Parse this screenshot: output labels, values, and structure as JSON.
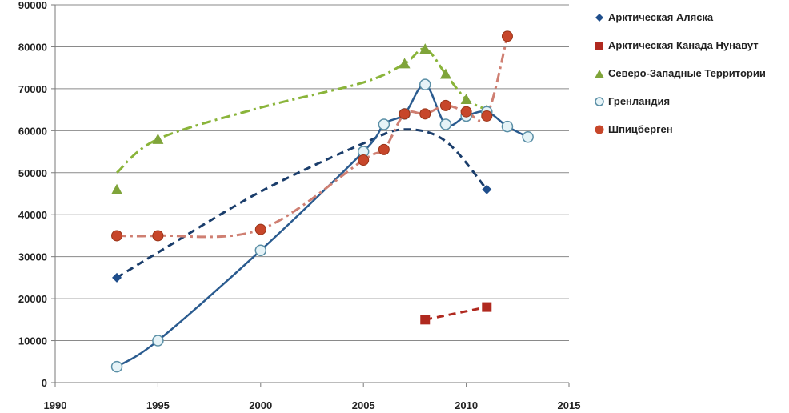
{
  "chart_data": {
    "type": "scatter",
    "title": "",
    "xlabel": "",
    "ylabel": "",
    "xlim": [
      1990,
      2015
    ],
    "ylim": [
      0,
      90000
    ],
    "x_ticks": [
      "1990",
      "1995",
      "2000",
      "2005",
      "2010",
      "2015"
    ],
    "y_ticks": [
      "0",
      "10000",
      "20000",
      "30000",
      "40000",
      "50000",
      "60000",
      "70000",
      "80000",
      "90000"
    ],
    "grid": "horizontal",
    "legend_position": "right",
    "series": [
      {
        "name": "Арктическая Аляска",
        "marker": "diamond",
        "color": "#1f4e8c",
        "points": [
          [
            1993,
            25000
          ],
          [
            2011,
            46000
          ]
        ],
        "trend": {
          "style": "dashed",
          "color": "#1a3d6b",
          "points": [
            [
              1993,
              25000
            ],
            [
              1995,
              31000
            ],
            [
              2000,
              45500
            ],
            [
              2005,
              57000
            ],
            [
              2007,
              60300
            ],
            [
              2009,
              57500
            ],
            [
              2011,
              46000
            ]
          ]
        }
      },
      {
        "name": "Арктическая Канада Нунавут",
        "marker": "square",
        "color": "#b0291f",
        "points": [
          [
            2008,
            15000
          ],
          [
            2011,
            18000
          ]
        ],
        "trend": {
          "style": "dashed",
          "color": "#b0291f",
          "points": [
            [
              2008,
              15000
            ],
            [
              2011,
              18000
            ]
          ]
        }
      },
      {
        "name": "Северо-Западные Территории",
        "marker": "triangle",
        "color": "#7fa43a",
        "points": [
          [
            1993,
            46000
          ],
          [
            1995,
            58000
          ],
          [
            2007,
            76000
          ],
          [
            2008,
            79500
          ],
          [
            2009,
            73500
          ],
          [
            2010,
            67500
          ],
          [
            2011,
            65000
          ]
        ],
        "trend": {
          "style": "dashdot",
          "color": "#8ab43a",
          "points": [
            [
              1993,
              50000
            ],
            [
              1995,
              58000
            ],
            [
              2000,
              65500
            ],
            [
              2005,
              71500
            ],
            [
              2007,
              76000
            ],
            [
              2008,
              79500
            ],
            [
              2009,
              73500
            ],
            [
              2010,
              67500
            ],
            [
              2011,
              65000
            ]
          ]
        }
      },
      {
        "name": "Гренландия",
        "marker": "circle-open",
        "color": "#b7dce8",
        "points": [
          [
            1993,
            3800
          ],
          [
            1995,
            10000
          ],
          [
            2000,
            31500
          ],
          [
            2005,
            55000
          ],
          [
            2006,
            61500
          ],
          [
            2007,
            64000
          ],
          [
            2008,
            71000
          ],
          [
            2009,
            61500
          ],
          [
            2010,
            63500
          ],
          [
            2011,
            64500
          ],
          [
            2012,
            61000
          ],
          [
            2013,
            58500
          ]
        ],
        "trend": {
          "style": "solid",
          "color": "#2a5b8f",
          "points": [
            [
              1993,
              3800
            ],
            [
              1995,
              10000
            ],
            [
              2000,
              31500
            ],
            [
              2005,
              55000
            ],
            [
              2006,
              61500
            ],
            [
              2007,
              64000
            ],
            [
              2008,
              71000
            ],
            [
              2009,
              61500
            ],
            [
              2010,
              63500
            ],
            [
              2011,
              64500
            ],
            [
              2012,
              61000
            ],
            [
              2013,
              58500
            ]
          ]
        }
      },
      {
        "name": "Шпицберген",
        "marker": "circle",
        "color": "#c7462a",
        "points": [
          [
            1993,
            35000
          ],
          [
            1995,
            35000
          ],
          [
            2000,
            36500
          ],
          [
            2005,
            53000
          ],
          [
            2006,
            55500
          ],
          [
            2007,
            64000
          ],
          [
            2008,
            64000
          ],
          [
            2009,
            66000
          ],
          [
            2010,
            64500
          ],
          [
            2011,
            63500
          ],
          [
            2012,
            82500
          ]
        ],
        "trend": {
          "style": "dashdot",
          "color": "#cf7f72",
          "points": [
            [
              1993,
              35000
            ],
            [
              1995,
              35000
            ],
            [
              2000,
              36500
            ],
            [
              2005,
              53000
            ],
            [
              2006,
              55500
            ],
            [
              2007,
              64000
            ],
            [
              2008,
              64000
            ],
            [
              2009,
              66000
            ],
            [
              2010,
              64500
            ],
            [
              2011,
              63500
            ],
            [
              2012,
              82500
            ]
          ]
        }
      }
    ]
  }
}
